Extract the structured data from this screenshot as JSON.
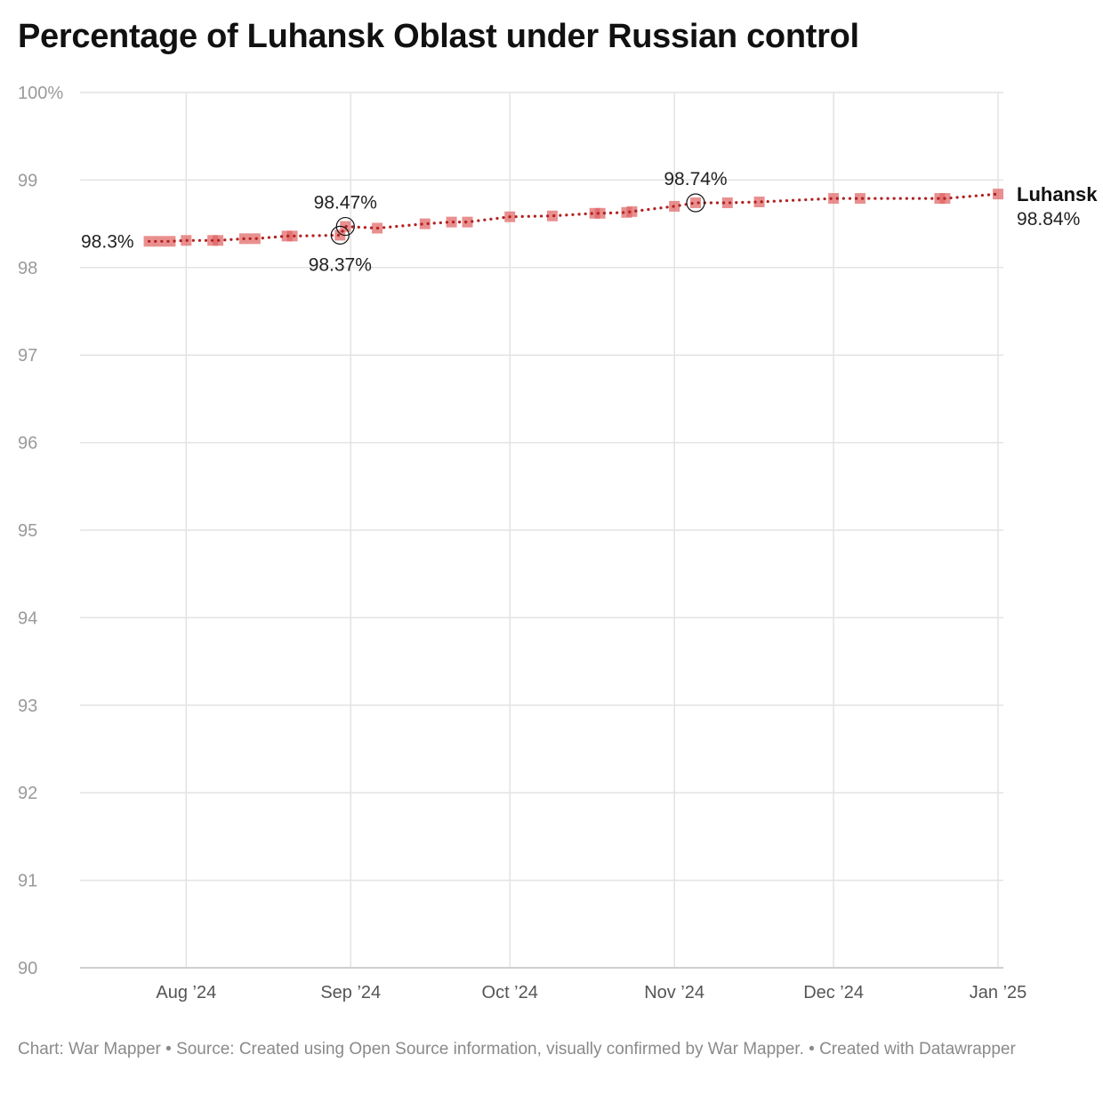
{
  "title": "Percentage of Luhansk Oblast under Russian control",
  "footer": {
    "chart_credit": "Chart: War Mapper",
    "separator": " • ",
    "source": "Source: Created using Open Source information, visually confirmed by War Mapper.",
    "created_with": "Created with Datawrapper"
  },
  "colors": {
    "marker": "#e06464",
    "line": "#b22222",
    "grid": "#e3e3e3",
    "tick_label": "#9a9a9a",
    "annotation": "#222222"
  },
  "chart_data": {
    "type": "line",
    "title": "Percentage of Luhansk Oblast under Russian control",
    "xlabel": "",
    "ylabel": "",
    "xlim": [
      "2024-07-12",
      "2025-01-02"
    ],
    "ylim": [
      90,
      100
    ],
    "grid": true,
    "y_ticks": [
      {
        "value": 100,
        "label": "100%"
      },
      {
        "value": 99,
        "label": "99"
      },
      {
        "value": 98,
        "label": "98"
      },
      {
        "value": 97,
        "label": "97"
      },
      {
        "value": 96,
        "label": "96"
      },
      {
        "value": 95,
        "label": "95"
      },
      {
        "value": 94,
        "label": "94"
      },
      {
        "value": 93,
        "label": "93"
      },
      {
        "value": 92,
        "label": "92"
      },
      {
        "value": 91,
        "label": "91"
      },
      {
        "value": 90,
        "label": "90"
      }
    ],
    "x_ticks": [
      {
        "date": "2024-08-01",
        "label": "Aug ’24"
      },
      {
        "date": "2024-09-01",
        "label": "Sep ’24"
      },
      {
        "date": "2024-10-01",
        "label": "Oct ’24"
      },
      {
        "date": "2024-11-01",
        "label": "Nov ’24"
      },
      {
        "date": "2024-12-01",
        "label": "Dec ’24"
      },
      {
        "date": "2025-01-01",
        "label": "Jan ’25"
      }
    ],
    "series": [
      {
        "name": "Luhansk",
        "end_value_label": "98.84%",
        "points": [
          {
            "date": "2024-07-25",
            "value": 98.3
          },
          {
            "date": "2024-07-27",
            "value": 98.3
          },
          {
            "date": "2024-07-29",
            "value": 98.3
          },
          {
            "date": "2024-08-01",
            "value": 98.31
          },
          {
            "date": "2024-08-06",
            "value": 98.31
          },
          {
            "date": "2024-08-07",
            "value": 98.31
          },
          {
            "date": "2024-08-12",
            "value": 98.33
          },
          {
            "date": "2024-08-14",
            "value": 98.33
          },
          {
            "date": "2024-08-20",
            "value": 98.36
          },
          {
            "date": "2024-08-21",
            "value": 98.36
          },
          {
            "date": "2024-08-30",
            "value": 98.37
          },
          {
            "date": "2024-08-31",
            "value": 98.47
          },
          {
            "date": "2024-09-06",
            "value": 98.45
          },
          {
            "date": "2024-09-15",
            "value": 98.5
          },
          {
            "date": "2024-09-20",
            "value": 98.52
          },
          {
            "date": "2024-09-23",
            "value": 98.52
          },
          {
            "date": "2024-10-01",
            "value": 98.58
          },
          {
            "date": "2024-10-09",
            "value": 98.59
          },
          {
            "date": "2024-10-17",
            "value": 98.62
          },
          {
            "date": "2024-10-18",
            "value": 98.62
          },
          {
            "date": "2024-10-23",
            "value": 98.63
          },
          {
            "date": "2024-10-24",
            "value": 98.64
          },
          {
            "date": "2024-11-01",
            "value": 98.7
          },
          {
            "date": "2024-11-05",
            "value": 98.74
          },
          {
            "date": "2024-11-11",
            "value": 98.74
          },
          {
            "date": "2024-11-17",
            "value": 98.75
          },
          {
            "date": "2024-12-01",
            "value": 98.79
          },
          {
            "date": "2024-12-06",
            "value": 98.79
          },
          {
            "date": "2024-12-21",
            "value": 98.79
          },
          {
            "date": "2024-12-22",
            "value": 98.79
          },
          {
            "date": "2025-01-01",
            "value": 98.84
          }
        ]
      }
    ],
    "annotations": [
      {
        "date": "2024-07-25",
        "value": 98.3,
        "label": "98.3%",
        "position": "left",
        "circle": false
      },
      {
        "date": "2024-08-31",
        "value": 98.47,
        "label": "98.47%",
        "position": "above",
        "circle": true
      },
      {
        "date": "2024-08-30",
        "value": 98.37,
        "label": "98.37%",
        "position": "below",
        "circle": true
      },
      {
        "date": "2024-11-05",
        "value": 98.74,
        "label": "98.74%",
        "position": "above",
        "circle": true
      }
    ]
  }
}
